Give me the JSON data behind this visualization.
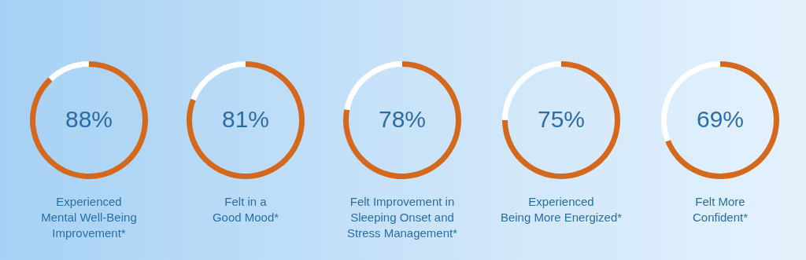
{
  "chart_data": [
    {
      "type": "donut",
      "title": "Experienced\nMental Well-Being\nImprovement*",
      "categories": [
        null,
        null
      ],
      "values": [
        88,
        12
      ],
      "colors": [
        "#d4681c",
        "#ffffff"
      ],
      "value_labels": [
        "88%",
        null
      ]
    },
    {
      "type": "donut",
      "title": "Felt in a\nGood Mood*",
      "categories": [
        null,
        null
      ],
      "values": [
        81,
        19
      ],
      "colors": [
        "#d4681c",
        "#ffffff"
      ],
      "value_labels": [
        "81%",
        null
      ]
    },
    {
      "type": "donut",
      "title": "Felt Improvement in\nSleeping Onset and\nStress Management*",
      "categories": [
        null,
        null
      ],
      "values": [
        78,
        22
      ],
      "colors": [
        "#d4681c",
        "#ffffff"
      ],
      "value_labels": [
        "78%",
        null
      ]
    },
    {
      "type": "donut",
      "title": "Experienced\nBeing More Energized*",
      "categories": [
        null,
        null
      ],
      "values": [
        75,
        25
      ],
      "colors": [
        "#d4681c",
        "#ffffff"
      ],
      "value_labels": [
        "75%",
        null
      ]
    },
    {
      "type": "donut",
      "title": "Felt More\nConfident*",
      "categories": [
        null,
        null
      ],
      "values": [
        69,
        31
      ],
      "colors": [
        "#d4681c",
        "#ffffff"
      ],
      "value_labels": [
        "69%",
        null
      ]
    }
  ]
}
